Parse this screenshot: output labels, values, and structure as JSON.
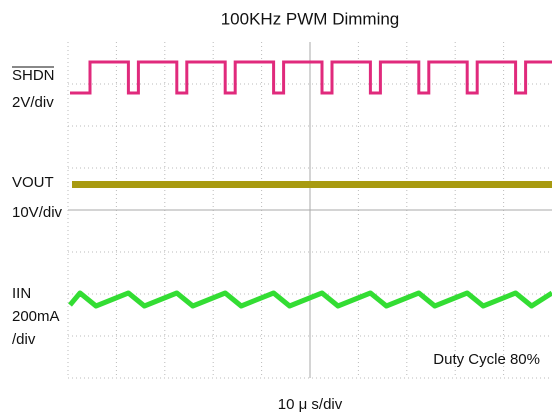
{
  "title": "100KHz PWM Dimming",
  "channels": [
    {
      "name": "SHDN",
      "scale": "2V/div"
    },
    {
      "name": "VOUT",
      "scale": "10V/div"
    },
    {
      "name": "IIN",
      "scale": "200mA",
      "scale_unit": "/div"
    }
  ],
  "annotation": "Duty Cycle 80%",
  "timebase": "10 μ s/div"
}
